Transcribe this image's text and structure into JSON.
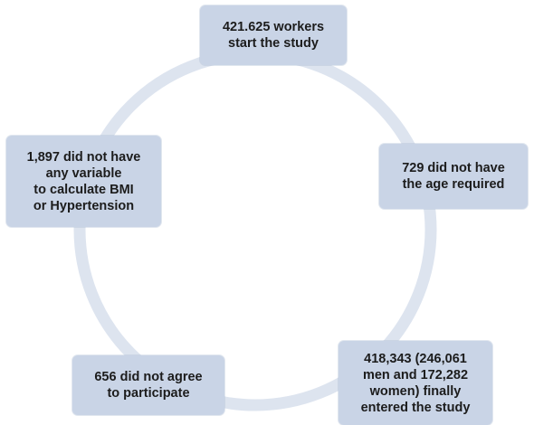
{
  "diagram": {
    "ring_color": "#dde4ef",
    "box_color": "#c9d4e6",
    "text_color": "#1c1c1c",
    "nodes": {
      "start": {
        "lines": [
          "421.625 workers",
          "start the study"
        ]
      },
      "age": {
        "lines": [
          "729 did not have",
          "the age required"
        ]
      },
      "final": {
        "lines": [
          "418,343 (246,061",
          "men and 172,282",
          "women) finally",
          "entered the study"
        ]
      },
      "agree": {
        "lines": [
          "656 did not agree",
          "to participate"
        ]
      },
      "bmi": {
        "lines": [
          "1,897 did not have",
          "any variable",
          "to calculate BMI",
          "or Hypertension"
        ]
      }
    }
  }
}
